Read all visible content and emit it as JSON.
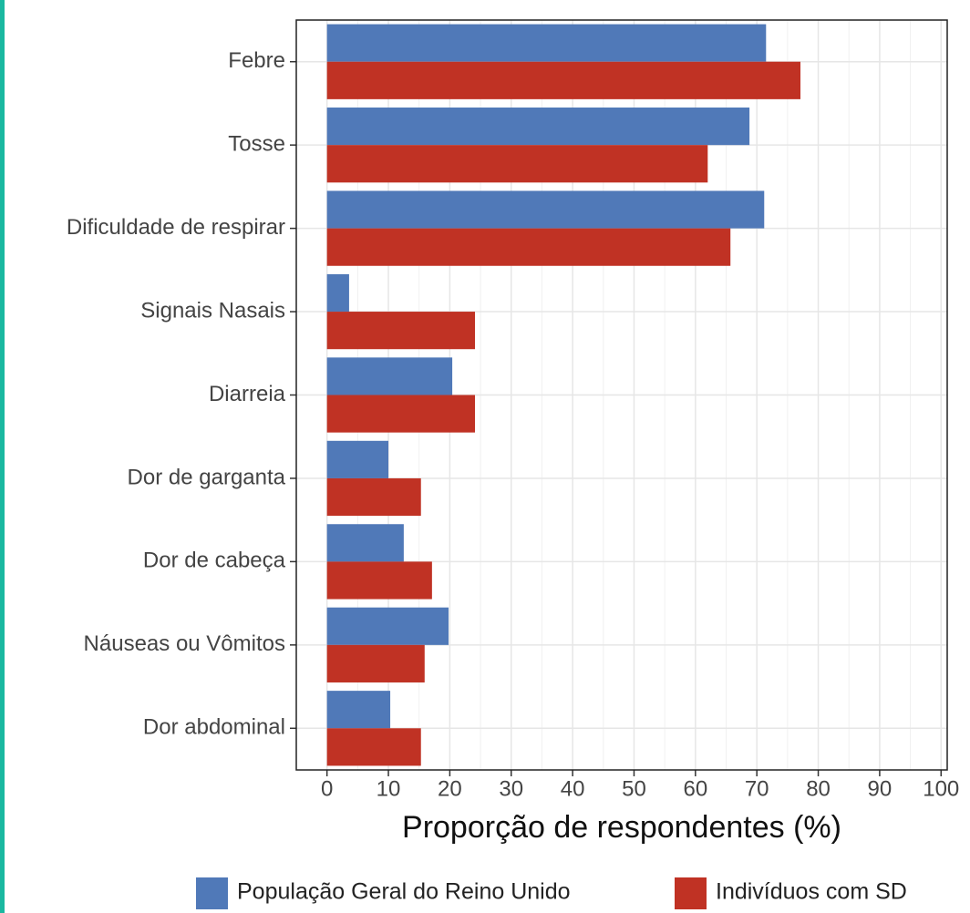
{
  "chart_data": {
    "type": "bar",
    "orientation": "horizontal",
    "x_label": "Proporção de respondentes (%)",
    "categories": [
      "Febre",
      "Tosse",
      "Dificuldade de respirar",
      "Signais Nasais",
      "Diarreia",
      "Dor de garganta",
      "Dor de cabeça",
      "Náuseas ou Vômitos",
      "Dor abdominal"
    ],
    "series": [
      {
        "name": "População Geral do Reino Unido",
        "color": "#5079b8",
        "values": [
          71.5,
          68.8,
          71.2,
          3.6,
          20.4,
          10,
          12.5,
          19.8,
          10.3
        ]
      },
      {
        "name": "Indivíduos com SD",
        "color": "#c03224",
        "values": [
          77.1,
          62,
          65.7,
          24.1,
          24.1,
          15.3,
          17.1,
          15.9,
          15.3
        ]
      }
    ],
    "xlim": [
      -5,
      101
    ],
    "xticks": [
      0,
      10,
      20,
      30,
      40,
      50,
      60,
      70,
      80,
      90,
      100
    ],
    "grid": true,
    "legend": "bottom"
  }
}
